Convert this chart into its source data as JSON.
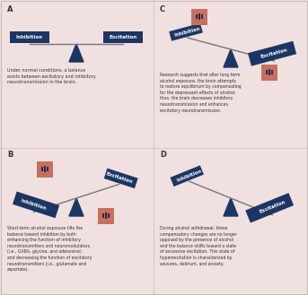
{
  "background_color": "#f0e0e0",
  "dark_blue": "#1c3664",
  "salmon": "#c87060",
  "text_color": "#222222",
  "label_A": "A",
  "label_B": "B",
  "label_C": "C",
  "label_D": "D",
  "text_inhibition": "Inhibition",
  "text_excitation": "Excitation",
  "text_A": "Under normal conditions, a balance\nexists between excitatory and inhibitory\nneurotransmission in the brain.",
  "text_B": "Short-term alcohol exposure tilts the\nbalance toward inhibition by both\nenhancing the function of inhibitory\nneurotransmitters and neuromodulators\n(i.e., GABA, glycine, and adenosine)\nand decreasing the function of excitatory\nneurotransmitters (i.e., glutamate and\naspartate).",
  "text_C": "Research suggests that after long term\nalcohol exposure, the brain attempts\nto restore equilibrium by compensating\nfor the depressant effects of alcohol;\nthus, the brain decreases inhibitory\nneurotransmission and enhances\nexcitatory neurotransmission.",
  "text_D": "During alcohol withdrawal, these\ncompensatory changes are no longer\nopposed by the presence of alcohol\nand the balance shifts toward a state\nof excessive excitation. This state of\nhyperexcitation is characterized by\nseizures, delirium, and anxiety."
}
